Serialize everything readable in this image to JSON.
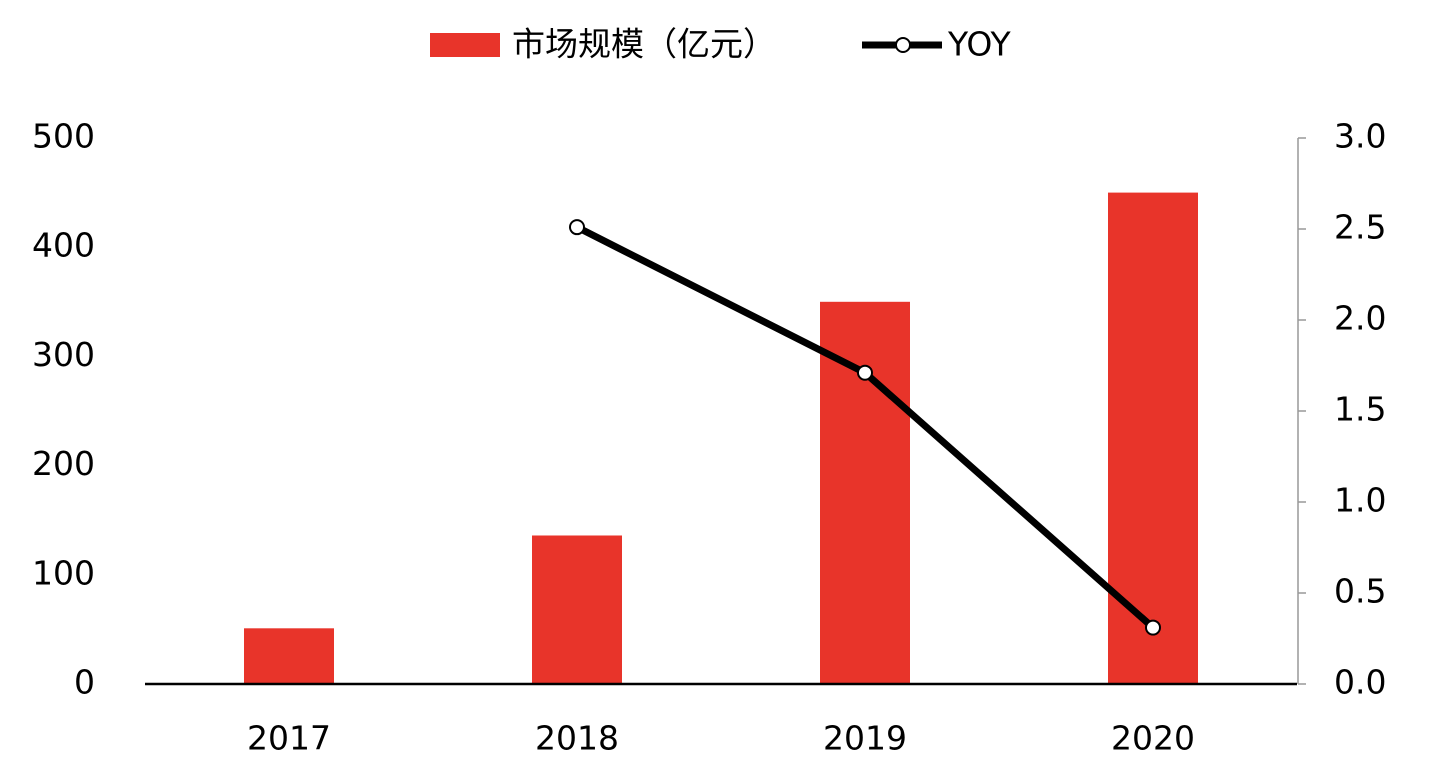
{
  "chart_data": {
    "type": "bar",
    "categories": [
      "2017",
      "2018",
      "2019",
      "2020"
    ],
    "series": [
      {
        "name": "市场规模（亿元）",
        "color": "#e8342a",
        "values": [
          51,
          136,
          350,
          450
        ]
      },
      {
        "name": "YOY",
        "color": "#000000",
        "type": "line",
        "axis": "y2",
        "values": [
          null,
          2.51,
          1.71,
          0.31
        ]
      }
    ],
    "ylim": [
      0,
      500
    ],
    "yticks": [
      0,
      100,
      200,
      300,
      400,
      500
    ],
    "y2lim": [
      0,
      3
    ],
    "y2ticks": [
      {
        "value": 0,
        "label": "0.0"
      },
      0.5,
      {
        "value": 1,
        "label": "1.0"
      },
      1.5,
      {
        "value": 2,
        "label": "2.0"
      },
      2.5,
      {
        "value": 3,
        "label": "3.0"
      }
    ],
    "legend": "top",
    "grid": false
  }
}
